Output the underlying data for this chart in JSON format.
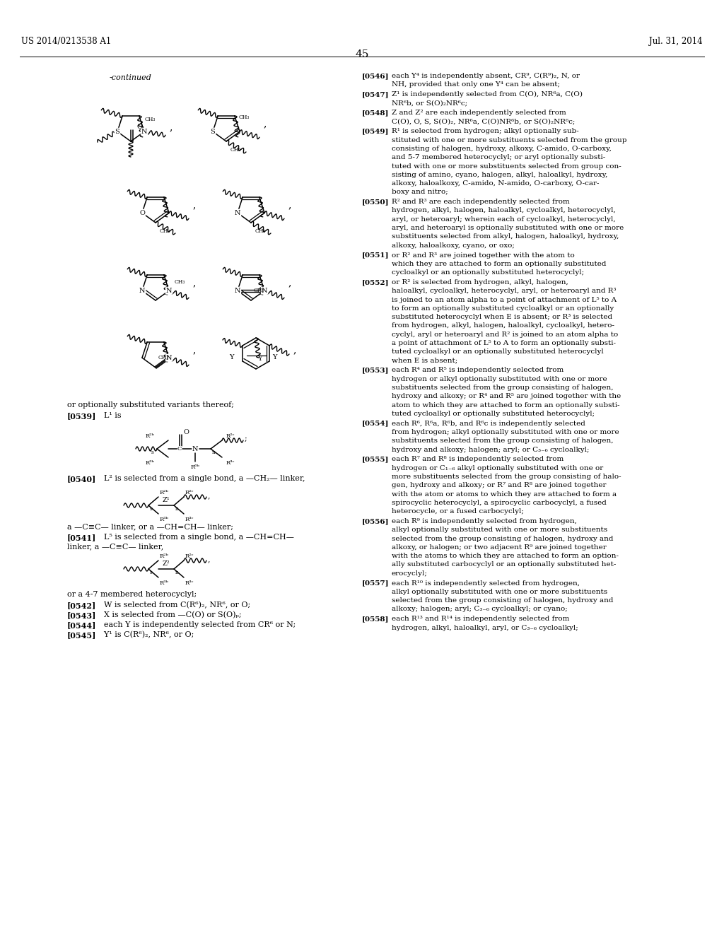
{
  "page_number": "45",
  "patent_number": "US 2014/0213538 A1",
  "patent_date": "Jul. 31, 2014",
  "bg": "#ffffff",
  "text_color": "#000000"
}
